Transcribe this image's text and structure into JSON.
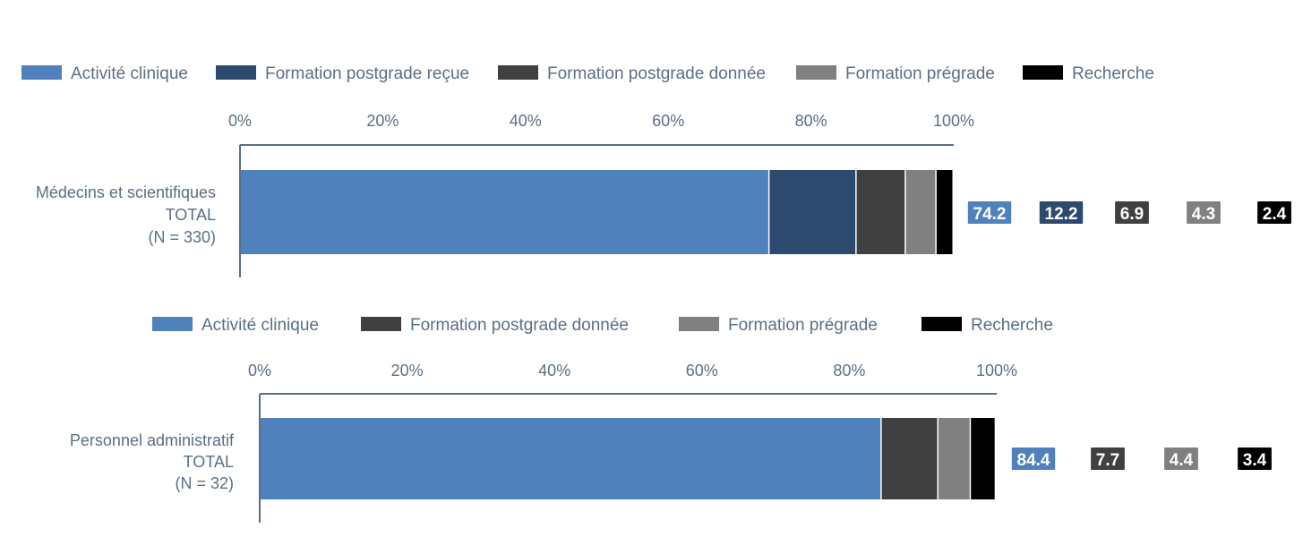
{
  "chart_data": [
    {
      "type": "bar",
      "orientation": "horizontal",
      "stacked": true,
      "category_lines": [
        "Médecins et scientifiques",
        "TOTAL",
        "(N = 330)"
      ],
      "x_ticks": [
        "0%",
        "20%",
        "40%",
        "60%",
        "80%",
        "100%"
      ],
      "xlim": [
        0,
        100
      ],
      "legend_position": "top",
      "series": [
        {
          "name": "Activité clinique",
          "value": 74.2,
          "label": "74.2",
          "color": "#4f81bd"
        },
        {
          "name": "Formation postgrade reçue",
          "value": 12.2,
          "label": "12.2",
          "color": "#2c4a6e"
        },
        {
          "name": "Formation postgrade donnée",
          "value": 6.9,
          "label": "6.9",
          "color": "#404040"
        },
        {
          "name": "Formation prégrade",
          "value": 4.3,
          "label": "4.3",
          "color": "#808080"
        },
        {
          "name": "Recherche",
          "value": 2.4,
          "label": "2.4",
          "color": "#000000"
        }
      ]
    },
    {
      "type": "bar",
      "orientation": "horizontal",
      "stacked": true,
      "category_lines": [
        "Personnel administratif",
        "TOTAL",
        "(N = 32)"
      ],
      "x_ticks": [
        "0%",
        "20%",
        "40%",
        "60%",
        "80%",
        "100%"
      ],
      "xlim": [
        0,
        100
      ],
      "legend_position": "top",
      "series": [
        {
          "name": "Activité clinique",
          "value": 84.4,
          "label": "84.4",
          "color": "#4f81bd"
        },
        {
          "name": "Formation postgrade donnée",
          "value": 7.7,
          "label": "7.7",
          "color": "#404040"
        },
        {
          "name": "Formation prégrade",
          "value": 4.4,
          "label": "4.4",
          "color": "#808080"
        },
        {
          "name": "Recherche",
          "value": 3.4,
          "label": "3.4",
          "color": "#000000"
        }
      ]
    }
  ]
}
